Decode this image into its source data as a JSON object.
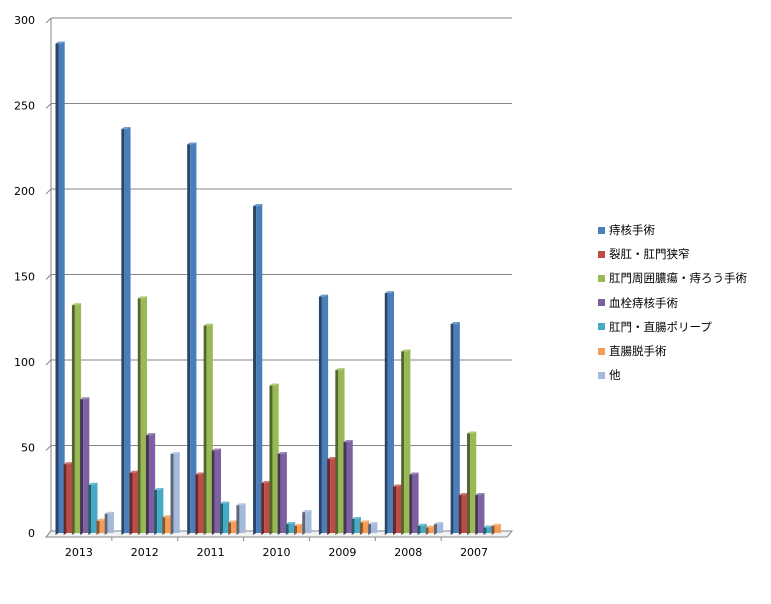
{
  "chart_data": {
    "type": "bar",
    "categories": [
      "2013",
      "2012",
      "2011",
      "2010",
      "2009",
      "2008",
      "2007"
    ],
    "series": [
      {
        "name": "痔核手術",
        "color": "#4a7ebb",
        "values": [
          285,
          235,
          226,
          190,
          137,
          139,
          121
        ]
      },
      {
        "name": "裂肛・肛門狭窄",
        "color": "#be4b48",
        "values": [
          39,
          34,
          33,
          28,
          42,
          26,
          21
        ]
      },
      {
        "name": "肛門周囲膿瘍・痔ろう手術",
        "color": "#98b954",
        "values": [
          132,
          136,
          120,
          85,
          94,
          105,
          57
        ]
      },
      {
        "name": "血栓痔核手術",
        "color": "#7d60a0",
        "values": [
          77,
          56,
          47,
          45,
          52,
          33,
          21
        ]
      },
      {
        "name": "肛門・直腸ポリープ",
        "color": "#46aac5",
        "values": [
          27,
          24,
          16,
          4,
          7,
          3,
          2
        ]
      },
      {
        "name": "直腸脱手術",
        "color": "#f59d56",
        "values": [
          6,
          8,
          5,
          3,
          5,
          2,
          3
        ]
      },
      {
        "name": "他",
        "color": "#a5b9da",
        "values": [
          10,
          45,
          15,
          11,
          4,
          4,
          0
        ]
      }
    ],
    "yticks": [
      "0",
      "50",
      "100",
      "150",
      "200",
      "250",
      "300"
    ],
    "ylim": [
      0,
      300
    ],
    "grid": true,
    "legend": "right"
  }
}
